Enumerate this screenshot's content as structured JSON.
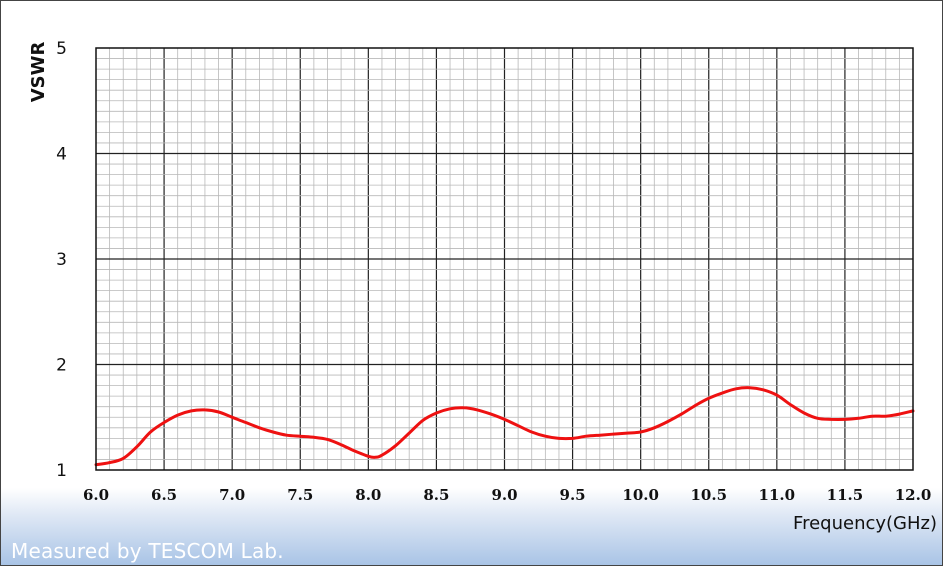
{
  "chart_data": {
    "type": "line",
    "title": "",
    "xlabel": "Frequency(GHz)",
    "ylabel": "VSWR",
    "xlim": [
      6.0,
      12.0
    ],
    "ylim": [
      1,
      5
    ],
    "x_ticks": [
      "6.0",
      "6.5",
      "7.0",
      "7.5",
      "8.0",
      "8.5",
      "9.0",
      "9.5",
      "10.0",
      "10.5",
      "11.0",
      "11.5",
      "12.0"
    ],
    "y_ticks": [
      "1",
      "2",
      "3",
      "4",
      "5"
    ],
    "grid": true,
    "line_color": "#ee1111",
    "series": [
      {
        "x": [
          6.0,
          6.1,
          6.2,
          6.3,
          6.4,
          6.5,
          6.6,
          6.7,
          6.8,
          6.9,
          7.0,
          7.1,
          7.2,
          7.3,
          7.4,
          7.5,
          7.6,
          7.7,
          7.8,
          7.9,
          8.0,
          8.05,
          8.1,
          8.2,
          8.3,
          8.4,
          8.5,
          8.6,
          8.7,
          8.8,
          8.9,
          9.0,
          9.1,
          9.2,
          9.3,
          9.4,
          9.5,
          9.6,
          9.7,
          9.8,
          9.9,
          10.0,
          10.1,
          10.2,
          10.3,
          10.4,
          10.5,
          10.6,
          10.7,
          10.8,
          10.9,
          11.0,
          11.1,
          11.2,
          11.3,
          11.4,
          11.5,
          11.6,
          11.7,
          11.8,
          11.9,
          12.0
        ],
        "y": [
          1.05,
          1.07,
          1.11,
          1.22,
          1.36,
          1.45,
          1.52,
          1.56,
          1.57,
          1.55,
          1.5,
          1.45,
          1.4,
          1.36,
          1.33,
          1.32,
          1.31,
          1.29,
          1.24,
          1.18,
          1.13,
          1.12,
          1.14,
          1.23,
          1.35,
          1.47,
          1.54,
          1.58,
          1.59,
          1.57,
          1.53,
          1.48,
          1.42,
          1.36,
          1.32,
          1.3,
          1.3,
          1.32,
          1.33,
          1.34,
          1.35,
          1.36,
          1.4,
          1.46,
          1.53,
          1.61,
          1.68,
          1.73,
          1.77,
          1.78,
          1.76,
          1.71,
          1.62,
          1.54,
          1.49,
          1.48,
          1.48,
          1.49,
          1.51,
          1.51,
          1.53,
          1.56
        ]
      }
    ]
  },
  "footer": {
    "watermark": "Measured by TESCOM Lab."
  }
}
